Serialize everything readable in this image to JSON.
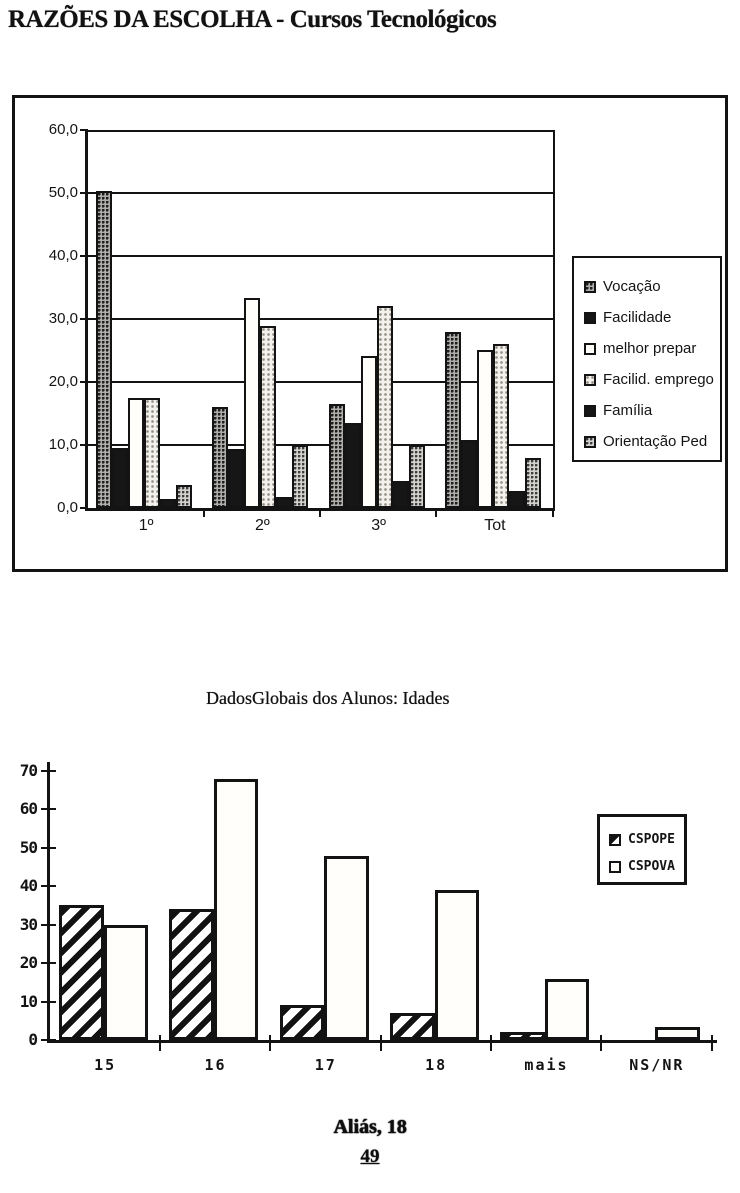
{
  "page": {
    "title": "RAZÕES DA ESCOLHA - Cursos Tecnológicos",
    "footer": {
      "source": "Aliás, 18",
      "page_number": "49"
    }
  },
  "chart_data": [
    {
      "type": "bar",
      "title": "",
      "categories": [
        "1º",
        "2º",
        "3º",
        "Tot"
      ],
      "series": [
        {
          "name": "Vocação",
          "pattern": "stipple-dark",
          "values": [
            50.3,
            16.0,
            16.5,
            28.0
          ]
        },
        {
          "name": "Facilidade",
          "pattern": "solid-black",
          "values": [
            9.5,
            9.4,
            13.5,
            10.8
          ]
        },
        {
          "name": "melhor prepar",
          "pattern": "white",
          "values": [
            17.4,
            33.4,
            24.2,
            25.1
          ]
        },
        {
          "name": "Facilid. emprego",
          "pattern": "stipple-light",
          "values": [
            17.4,
            28.9,
            32.0,
            26.0
          ]
        },
        {
          "name": "Família",
          "pattern": "solid-black",
          "values": [
            1.4,
            1.8,
            4.3,
            2.7
          ]
        },
        {
          "name": "Orientação Ped",
          "pattern": "stipple-mid",
          "values": [
            3.7,
            10.0,
            10.0,
            8.0
          ]
        }
      ],
      "ylim": [
        0,
        60
      ],
      "ytick_step": 10,
      "ytick_labels": [
        "0,0",
        "10,0",
        "20,0",
        "30,0",
        "40,0",
        "50,0",
        "60,0"
      ],
      "grid": true,
      "legend_position": "right-outside"
    },
    {
      "type": "bar",
      "title": "DadosGlobais dos Alunos: Idades",
      "categories": [
        "15",
        "16",
        "17",
        "18",
        "mais",
        "NS/NR"
      ],
      "series": [
        {
          "name": "CSPOPE",
          "pattern": "hatch-diagonal",
          "values": [
            35,
            34,
            9,
            7,
            2,
            0
          ]
        },
        {
          "name": "CSPOVA",
          "pattern": "white",
          "values": [
            30,
            68,
            48,
            39,
            16,
            3.5
          ]
        }
      ],
      "ylim": [
        0,
        70
      ],
      "ytick_step": 10,
      "ytick_labels": [
        "0",
        "10",
        "20",
        "30",
        "40",
        "50",
        "60",
        "70"
      ],
      "grid": false,
      "legend_position": "top-right-inside"
    }
  ],
  "colors": {
    "ink": "#131313",
    "paper": "#ffffff"
  }
}
